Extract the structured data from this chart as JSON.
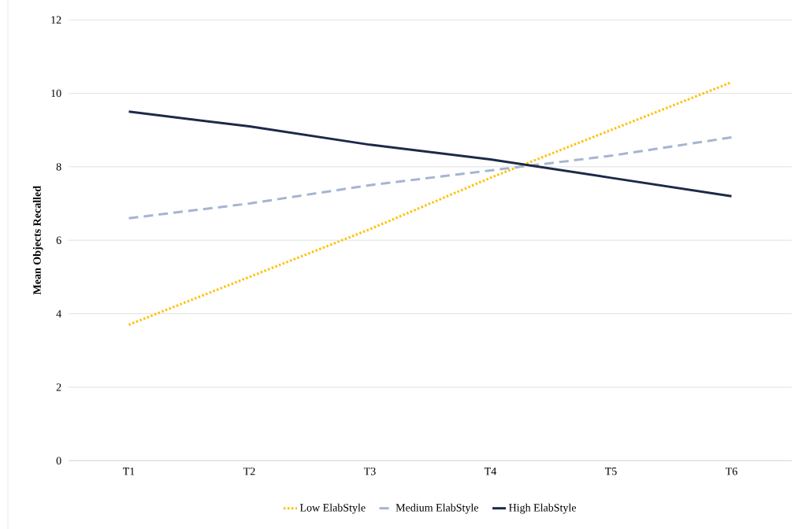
{
  "chart_data": {
    "type": "line",
    "ylabel": "Mean Objects Recalled",
    "categories": [
      "T1",
      "T2",
      "T3",
      "T4",
      "T5",
      "T6"
    ],
    "series": [
      {
        "name": "Low ElabStyle",
        "color": "#ffc000",
        "line_style": "dotted",
        "values": [
          3.7,
          5.0,
          6.3,
          7.7,
          9.0,
          10.3
        ]
      },
      {
        "name": "Medium ElabStyle",
        "color": "#a5b5d0",
        "line_style": "dashed",
        "values": [
          6.6,
          7.0,
          7.5,
          7.9,
          8.3,
          8.8
        ]
      },
      {
        "name": "High ElabStyle",
        "color": "#1c2a48",
        "line_style": "solid",
        "values": [
          9.5,
          9.1,
          8.6,
          8.2,
          7.7,
          7.2
        ]
      }
    ],
    "ylim": [
      0,
      12
    ],
    "yticks": [
      0,
      2,
      4,
      6,
      8,
      10,
      12
    ],
    "grid": "y",
    "legend": "bottom",
    "marker": "none"
  }
}
